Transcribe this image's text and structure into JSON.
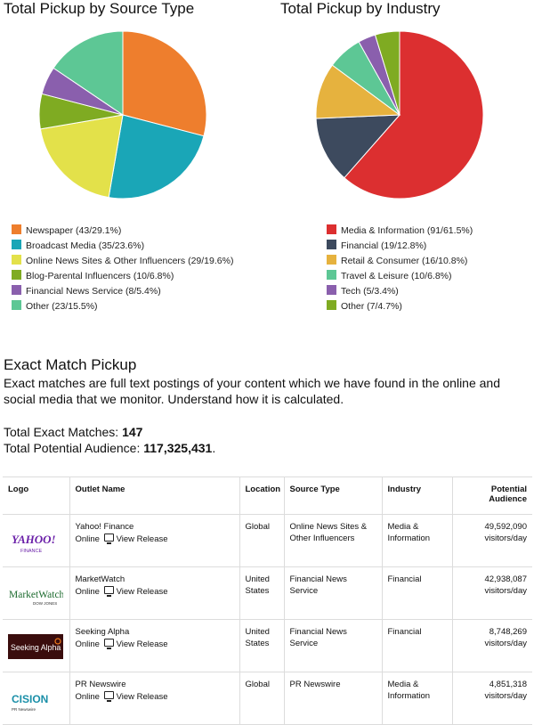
{
  "charts": {
    "source": {
      "title": "Total Pickup by Source Type",
      "legend": [
        {
          "label": "Newspaper (43/29.1%)",
          "color": "#ee7e2d"
        },
        {
          "label": "Broadcast Media (35/23.6%)",
          "color": "#1aa6b7"
        },
        {
          "label": "Online News Sites & Other Influencers (29/19.6%)",
          "color": "#e3e14a"
        },
        {
          "label": "Blog-Parental Influencers (10/6.8%)",
          "color": "#7fab22"
        },
        {
          "label": "Financial News Service (8/5.4%)",
          "color": "#8a5fad"
        },
        {
          "label": "Other (23/15.5%)",
          "color": "#5dc795"
        }
      ]
    },
    "industry": {
      "title": "Total Pickup by Industry",
      "legend": [
        {
          "label": "Media & Information (91/61.5%)",
          "color": "#dc2f30"
        },
        {
          "label": "Financial (19/12.8%)",
          "color": "#3d4a5e"
        },
        {
          "label": "Retail & Consumer (16/10.8%)",
          "color": "#e6b23e"
        },
        {
          "label": "Travel & Leisure (10/6.8%)",
          "color": "#5dc795"
        },
        {
          "label": "Tech (5/3.4%)",
          "color": "#8a5fad"
        },
        {
          "label": "Other (7/4.7%)",
          "color": "#7fab22"
        }
      ]
    }
  },
  "chart_data": [
    {
      "type": "pie",
      "title": "Total Pickup by Source Type",
      "categories": [
        "Newspaper",
        "Broadcast Media",
        "Online News Sites & Other Influencers",
        "Blog-Parental Influencers",
        "Financial News Service",
        "Other"
      ],
      "values": [
        43,
        35,
        29,
        10,
        8,
        23
      ],
      "colors": [
        "#ee7e2d",
        "#1aa6b7",
        "#e3e14a",
        "#7fab22",
        "#8a5fad",
        "#5dc795"
      ],
      "legend_position": "bottom"
    },
    {
      "type": "pie",
      "title": "Total Pickup by Industry",
      "categories": [
        "Media & Information",
        "Financial",
        "Retail & Consumer",
        "Travel & Leisure",
        "Tech",
        "Other"
      ],
      "values": [
        91,
        19,
        16,
        10,
        5,
        7
      ],
      "colors": [
        "#dc2f30",
        "#3d4a5e",
        "#e6b23e",
        "#5dc795",
        "#8a5fad",
        "#7fab22"
      ],
      "legend_position": "bottom"
    }
  ],
  "exact_match": {
    "title": "Exact Match Pickup",
    "description": "Exact matches are full text postings of your content which we have found in the online and social media that we monitor. Understand how it is calculated.",
    "total_matches_label": "Total Exact Matches: ",
    "total_matches_value": "147",
    "total_audience_label": "Total Potential Audience: ",
    "total_audience_value": "117,325,431",
    "total_audience_suffix": "."
  },
  "table": {
    "headers": {
      "logo": "Logo",
      "outlet": "Outlet Name",
      "location": "Location",
      "source_type": "Source Type",
      "industry": "Industry",
      "audience": "Potential Audience"
    },
    "rows": [
      {
        "logo_text": "YAHOO!",
        "logo_sub": "FINANCE",
        "outlet": "Yahoo! Finance",
        "online": "Online",
        "view": "View Release",
        "location": "Global",
        "source_type": "Online News Sites & Other Influencers",
        "industry": "Media & Information",
        "audience": "49,592,090 visitors/day"
      },
      {
        "logo_text": "MarketWatch",
        "logo_sub": "DOW JONES",
        "outlet": "MarketWatch",
        "online": "Online",
        "view": "View Release",
        "location": "United States",
        "source_type": "Financial News Service",
        "industry": "Financial",
        "audience": "42,938,087 visitors/day"
      },
      {
        "logo_text": "Seeking Alpha",
        "logo_sub": "",
        "outlet": "Seeking Alpha",
        "online": "Online",
        "view": "View Release",
        "location": "United States",
        "source_type": "Financial News Service",
        "industry": "Financial",
        "audience": "8,748,269 visitors/day"
      },
      {
        "logo_text": "CISION",
        "logo_sub": "PR Newswire",
        "outlet": "PR Newswire",
        "online": "Online",
        "view": "View Release",
        "location": "Global",
        "source_type": "PR Newswire",
        "industry": "Media & Information",
        "audience": "4,851,318 visitors/day"
      }
    ]
  }
}
